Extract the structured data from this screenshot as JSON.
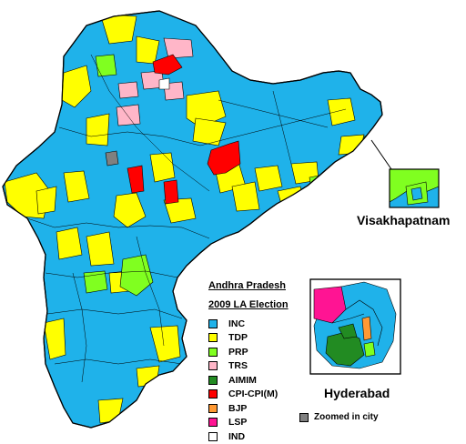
{
  "title": "Andhra Pradesh",
  "subtitle": "2009 LA Election",
  "legend": [
    {
      "party": "INC",
      "color": "#1fb2ea"
    },
    {
      "party": "TDP",
      "color": "#ffff00"
    },
    {
      "party": "PRP",
      "color": "#80ff20"
    },
    {
      "party": "TRS",
      "color": "#ffb6c8"
    },
    {
      "party": "AIMIM",
      "color": "#228b22"
    },
    {
      "party": "CPI-CPI(M)",
      "color": "#ff0000"
    },
    {
      "party": "BJP",
      "color": "#ff9933"
    },
    {
      "party": "LSP",
      "color": "#ff1493"
    },
    {
      "party": "IND",
      "color": "#ffffff"
    }
  ],
  "zoom_note": {
    "label": "Zoomed in city",
    "color": "#808080"
  },
  "insets": {
    "visakhapatnam": "Visakhapatnam",
    "hyderabad": "Hyderabad"
  }
}
